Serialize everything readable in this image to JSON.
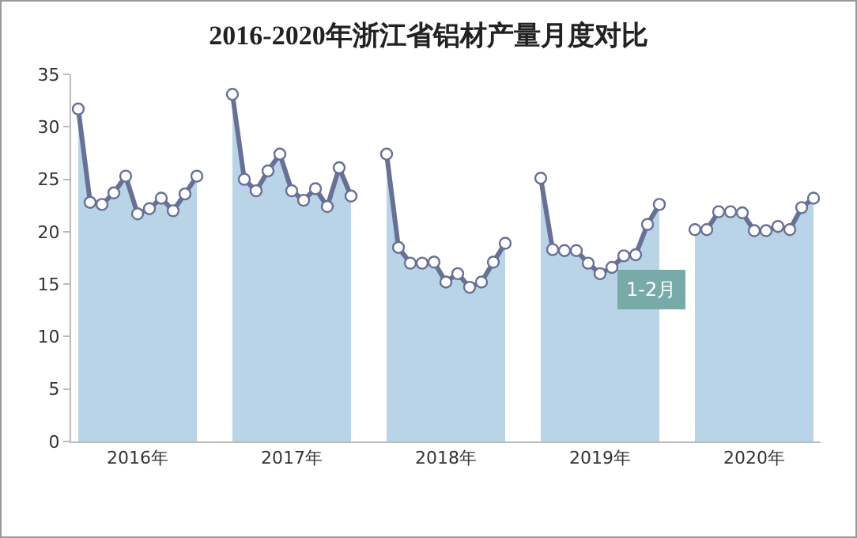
{
  "chart_data": {
    "type": "area",
    "title": "2016-2020年浙江省铝材产量月度对比",
    "categories": [
      null,
      null,
      null,
      null,
      null,
      "2016年",
      null,
      null,
      null,
      null,
      null,
      null,
      null,
      null,
      null,
      null,
      null,
      null,
      "2017年",
      null,
      null,
      null,
      null,
      null,
      null,
      null,
      null,
      null,
      null,
      null,
      null,
      "2018年",
      null,
      null,
      null,
      null,
      null,
      null,
      null,
      null,
      null,
      null,
      null,
      null,
      "2019年",
      null,
      null,
      null,
      null,
      null,
      null,
      null,
      null,
      null,
      null,
      null,
      null,
      "2020年",
      null,
      null,
      null,
      null,
      null
    ],
    "series": [
      {
        "color": "#b9d4e6",
        "values": [
          31.7,
          22.8,
          22.6,
          23.7,
          25.3,
          21.7,
          22.2,
          23.2,
          22.0,
          23.6,
          25.3,
          null,
          null,
          null,
          null,
          null,
          null,
          null,
          null,
          null,
          null,
          null,
          null,
          null,
          null,
          null,
          null,
          null,
          null,
          null,
          null,
          null,
          null,
          null,
          null,
          null,
          null,
          null,
          null,
          null,
          null,
          null,
          null,
          null,
          null,
          null,
          null,
          null,
          null,
          null,
          null,
          null,
          null,
          null,
          null,
          null,
          null,
          null,
          null,
          null,
          null,
          null,
          null
        ]
      },
      {
        "color": "#b9d4e6",
        "values": [
          null,
          null,
          null,
          null,
          null,
          null,
          null,
          null,
          null,
          null,
          null,
          null,
          null,
          33.1,
          25.0,
          23.9,
          25.8,
          27.4,
          23.9,
          23.0,
          24.1,
          22.4,
          26.1,
          23.4,
          null,
          null,
          null,
          null,
          null,
          null,
          null,
          null,
          null,
          null,
          null,
          null,
          null,
          null,
          null,
          null,
          null,
          null,
          null,
          null,
          null,
          null,
          null,
          null,
          null,
          null,
          null,
          null,
          null,
          null,
          null,
          null,
          null,
          null,
          null,
          null,
          null,
          null,
          null
        ]
      },
      {
        "color": "#b9d4e6",
        "values": [
          null,
          null,
          null,
          null,
          null,
          null,
          null,
          null,
          null,
          null,
          null,
          null,
          null,
          null,
          null,
          null,
          null,
          null,
          null,
          null,
          null,
          null,
          null,
          null,
          null,
          null,
          27.4,
          18.5,
          17.0,
          17.0,
          17.1,
          15.2,
          16.0,
          14.7,
          15.2,
          17.1,
          18.9,
          null,
          null,
          null,
          null,
          null,
          null,
          null,
          null,
          null,
          null,
          null,
          null,
          null,
          null,
          null,
          null,
          null,
          null,
          null,
          null,
          null,
          null,
          null,
          null,
          null,
          null
        ]
      },
      {
        "color": "#b9d4e6",
        "values": [
          null,
          null,
          null,
          null,
          null,
          null,
          null,
          null,
          null,
          null,
          null,
          null,
          null,
          null,
          null,
          null,
          null,
          null,
          null,
          null,
          null,
          null,
          null,
          null,
          null,
          null,
          null,
          null,
          null,
          null,
          null,
          null,
          null,
          null,
          null,
          null,
          null,
          null,
          null,
          25.1,
          18.3,
          18.2,
          18.2,
          17.0,
          16.0,
          16.6,
          17.7,
          17.8,
          20.7,
          22.6,
          null,
          null,
          null,
          null,
          null,
          null,
          null,
          null,
          null,
          null,
          null,
          null,
          null
        ]
      },
      {
        "color": "#b9d4e6",
        "values": [
          null,
          null,
          null,
          null,
          null,
          null,
          null,
          null,
          null,
          null,
          null,
          null,
          null,
          null,
          null,
          null,
          null,
          null,
          null,
          null,
          null,
          null,
          null,
          null,
          null,
          null,
          null,
          null,
          null,
          null,
          null,
          null,
          null,
          null,
          null,
          null,
          null,
          null,
          null,
          null,
          null,
          null,
          null,
          null,
          null,
          null,
          null,
          null,
          null,
          null,
          null,
          null,
          20.2,
          20.2,
          21.9,
          21.9,
          21.8,
          20.1,
          20.1,
          20.5,
          20.2,
          22.3,
          23.2
        ]
      }
    ],
    "ylim": [
      0,
      35
    ],
    "yticks": [
      0,
      5,
      10,
      15,
      20,
      25,
      30,
      35
    ],
    "grid": false,
    "marker": "circle",
    "line_style": "solid",
    "annotations": [
      "1-2月"
    ]
  }
}
